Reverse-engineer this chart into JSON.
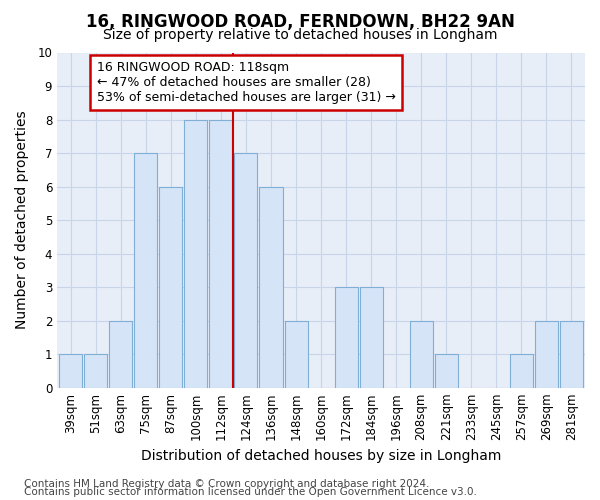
{
  "title_line1": "16, RINGWOOD ROAD, FERNDOWN, BH22 9AN",
  "title_line2": "Size of property relative to detached houses in Longham",
  "xlabel": "Distribution of detached houses by size in Longham",
  "ylabel": "Number of detached properties",
  "categories": [
    "39sqm",
    "51sqm",
    "63sqm",
    "75sqm",
    "87sqm",
    "100sqm",
    "112sqm",
    "124sqm",
    "136sqm",
    "148sqm",
    "160sqm",
    "172sqm",
    "184sqm",
    "196sqm",
    "208sqm",
    "221sqm",
    "233sqm",
    "245sqm",
    "257sqm",
    "269sqm",
    "281sqm"
  ],
  "values": [
    1,
    1,
    2,
    7,
    6,
    8,
    8,
    7,
    6,
    2,
    0,
    3,
    3,
    0,
    2,
    1,
    0,
    0,
    1,
    2,
    2
  ],
  "bar_color": "#d6e4f7",
  "bar_edge_color": "#7fafd4",
  "redline_index": 7,
  "redline_color": "#cc0000",
  "annotation_line1": "16 RINGWOOD ROAD: 118sqm",
  "annotation_line2": "← 47% of detached houses are smaller (28)",
  "annotation_line3": "53% of semi-detached houses are larger (31) →",
  "annotation_box_color": "#cc0000",
  "ylim": [
    0,
    10
  ],
  "yticks": [
    0,
    1,
    2,
    3,
    4,
    5,
    6,
    7,
    8,
    9,
    10
  ],
  "grid_color": "#c8d4e8",
  "bg_color": "#ffffff",
  "plot_bg_color": "#e8eef8",
  "title_fontsize": 12,
  "subtitle_fontsize": 10,
  "axis_label_fontsize": 10,
  "tick_fontsize": 8.5,
  "annotation_fontsize": 9,
  "footer_fontsize": 7.5,
  "footer_line1": "Contains HM Land Registry data © Crown copyright and database right 2024.",
  "footer_line2": "Contains public sector information licensed under the Open Government Licence v3.0."
}
